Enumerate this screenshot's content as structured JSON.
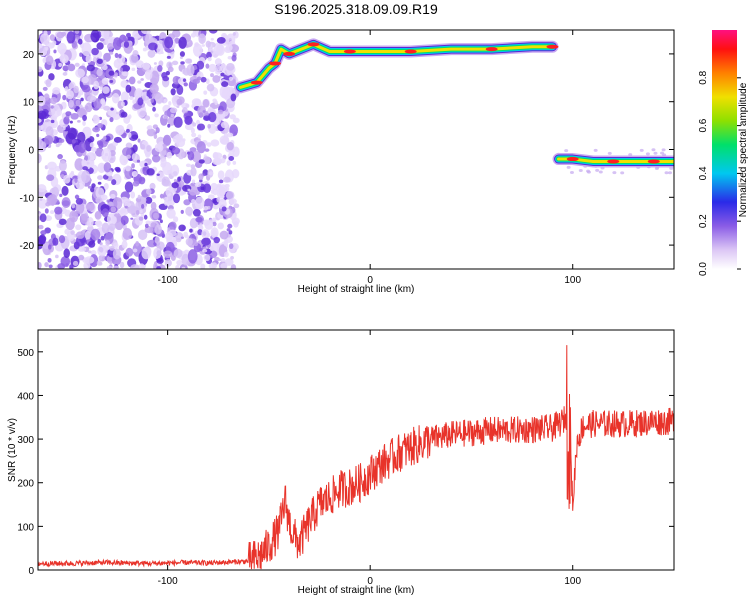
{
  "page_title": "S196.2025.318.09.09.R19",
  "chart_data": [
    {
      "type": "heatmap",
      "title": "S196.2025.318.09.09.R19",
      "xlabel": "Height of straight line (km)",
      "ylabel": "Frequency (Hz)",
      "xlim": [
        -164,
        150
      ],
      "ylim": [
        -25,
        25
      ],
      "x_ticks": [
        -100,
        0,
        100
      ],
      "y_ticks": [
        -20,
        -10,
        0,
        10,
        20
      ],
      "colorbar": {
        "label": "Normalized spectral amplitude",
        "range": [
          0.0,
          1.0
        ],
        "ticks": [
          0.0,
          0.2,
          0.4,
          0.6,
          0.8
        ]
      },
      "noise_region": {
        "x_range": [
          -164,
          -66
        ],
        "y_range": [
          -25,
          25
        ]
      },
      "tracks": [
        {
          "name": "",
          "points": [
            [
              -64,
              13
            ],
            [
              -56,
              14
            ],
            [
              -50,
              17
            ],
            [
              -47,
              18
            ],
            [
              -44,
              21
            ],
            [
              -40,
              20
            ],
            [
              -34,
              21
            ],
            [
              -28,
              22
            ],
            [
              -20,
              20.5
            ],
            [
              -10,
              20.5
            ],
            [
              0,
              20.5
            ],
            [
              20,
              20.5
            ],
            [
              40,
              21
            ],
            [
              60,
              21
            ],
            [
              80,
              21.5
            ],
            [
              90,
              21.5
            ]
          ]
        },
        {
          "name": "",
          "points": [
            [
              93,
              -2
            ],
            [
              100,
              -2
            ],
            [
              110,
              -2.5
            ],
            [
              120,
              -2.5
            ],
            [
              130,
              -2.5
            ],
            [
              140,
              -2.5
            ],
            [
              150,
              -2.5
            ]
          ]
        }
      ]
    },
    {
      "type": "line",
      "xlabel": "Height of straight line (km)",
      "ylabel": "SNR (10 * v/v)",
      "xlim": [
        -164,
        150
      ],
      "ylim": [
        0,
        550
      ],
      "x_ticks": [
        -100,
        0,
        100
      ],
      "y_ticks": [
        0,
        100,
        200,
        300,
        400,
        500
      ],
      "color": "#e8332a",
      "series": [
        {
          "name": "",
          "x": [
            -164,
            -150,
            -140,
            -130,
            -120,
            -110,
            -100,
            -90,
            -80,
            -70,
            -60,
            -55,
            -50,
            -45,
            -42,
            -40,
            -38,
            -35,
            -30,
            -25,
            -20,
            -15,
            -10,
            -5,
            0,
            5,
            10,
            15,
            20,
            25,
            30,
            35,
            40,
            50,
            60,
            70,
            80,
            90,
            95,
            98,
            100,
            102,
            105,
            110,
            120,
            130,
            140,
            150
          ],
          "y": [
            15,
            15,
            16,
            17,
            16,
            15,
            16,
            17,
            16,
            18,
            20,
            30,
            55,
            90,
            160,
            110,
            80,
            60,
            110,
            150,
            165,
            185,
            190,
            200,
            220,
            240,
            255,
            270,
            280,
            290,
            300,
            305,
            310,
            315,
            320,
            320,
            322,
            325,
            340,
            360,
            150,
            290,
            330,
            335,
            335,
            335,
            340,
            340
          ]
        }
      ]
    }
  ]
}
